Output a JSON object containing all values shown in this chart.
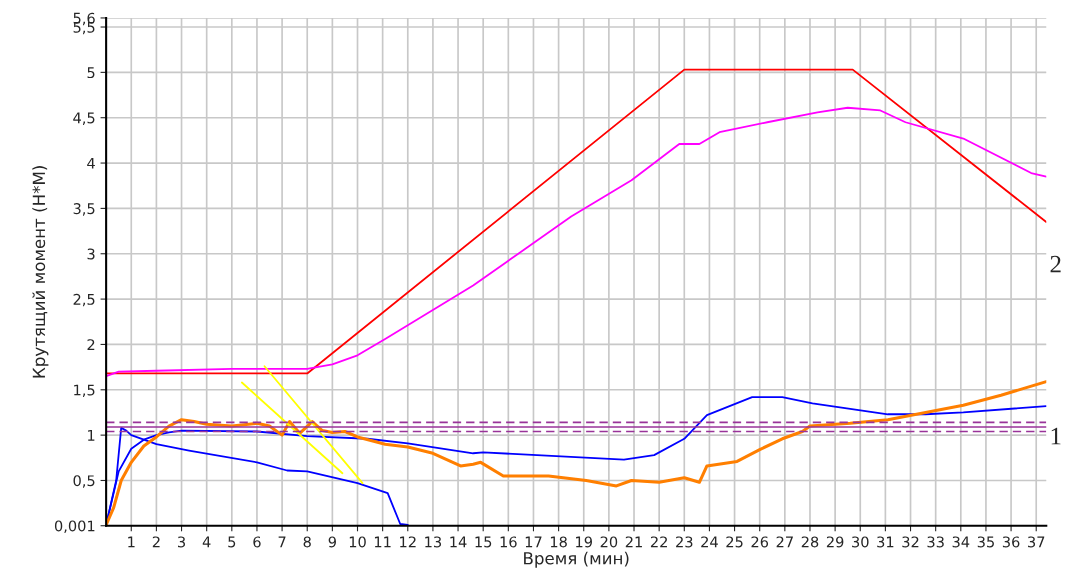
{
  "chart_data": {
    "type": "line",
    "xlabel": "Время (мин)",
    "ylabel": "Крутящий момент (Н*М)",
    "xlim": [
      0,
      37.4
    ],
    "xticks": [
      1,
      2,
      3,
      4,
      5,
      6,
      7,
      8,
      9,
      10,
      11,
      12,
      13,
      14,
      15,
      16,
      17,
      18,
      19,
      20,
      21,
      22,
      23,
      24,
      25,
      26,
      27,
      28,
      29,
      30,
      31,
      32,
      33,
      34,
      35,
      36,
      37
    ],
    "ylim": [
      0.001,
      5.6
    ],
    "yticks": [
      {
        "value": 0.001,
        "label": "0,001"
      },
      {
        "value": 0.5,
        "label": "0,5"
      },
      {
        "value": 1,
        "label": "1"
      },
      {
        "value": 1.5,
        "label": "1,5"
      },
      {
        "value": 2,
        "label": "2"
      },
      {
        "value": 2.5,
        "label": "2,5"
      },
      {
        "value": 3,
        "label": "3"
      },
      {
        "value": 3.5,
        "label": "3,5"
      },
      {
        "value": 4,
        "label": "4"
      },
      {
        "value": 4.5,
        "label": "4,5"
      },
      {
        "value": 5,
        "label": "5"
      },
      {
        "value": 5.5,
        "label": "5,5"
      },
      {
        "value": 5.6,
        "label": "5,6"
      }
    ],
    "grid": true,
    "legend": false,
    "series": [
      {
        "color": "#ff0000",
        "x": [
          0,
          8,
          23,
          29.7,
          37.4
        ],
        "values": [
          1.68,
          1.68,
          5.03,
          5.03,
          3.35
        ]
      },
      {
        "color": "#ff00ff",
        "x": [
          0,
          0.5,
          2,
          5,
          8,
          9,
          10,
          11.1,
          14.6,
          18.5,
          20.9,
          22.8,
          23.6,
          24.4,
          26.3,
          28.3,
          29.5,
          30.8,
          31.8,
          34.1,
          36.8,
          37.4
        ],
        "values": [
          1.65,
          1.7,
          1.71,
          1.73,
          1.73,
          1.78,
          1.88,
          2.06,
          2.65,
          3.41,
          3.81,
          4.21,
          4.21,
          4.34,
          4.45,
          4.56,
          4.61,
          4.58,
          4.45,
          4.27,
          3.89,
          3.85
        ]
      },
      {
        "color": "#0000ff",
        "x": [
          0,
          0.5,
          1,
          1.5,
          2,
          2.5,
          3,
          6,
          8,
          10.4,
          12,
          14.6,
          15,
          20.6,
          21.8,
          23,
          23.9,
          25.7,
          26.9,
          28.1,
          31.1,
          32.6,
          34.1,
          37.4
        ],
        "values": [
          0.01,
          0.6,
          0.85,
          0.95,
          1.0,
          1.03,
          1.05,
          1.04,
          0.99,
          0.96,
          0.91,
          0.8,
          0.81,
          0.73,
          0.78,
          0.96,
          1.22,
          1.42,
          1.42,
          1.35,
          1.23,
          1.23,
          1.25,
          1.32
        ]
      },
      {
        "color": "#0000ff",
        "x": [
          0,
          0.4,
          0.6,
          0.8,
          1,
          1.5,
          2,
          3.3,
          6,
          7.2,
          8,
          10,
          11.2,
          11.7,
          12
        ],
        "values": [
          0.01,
          0.5,
          1.08,
          1.05,
          1.0,
          0.95,
          0.9,
          0.83,
          0.7,
          0.61,
          0.6,
          0.47,
          0.36,
          0.02,
          0.01
        ]
      },
      {
        "color": "#ff7f00",
        "x": [
          0,
          0.3,
          0.6,
          1,
          1.5,
          2,
          2.5,
          3,
          3.5,
          4,
          5,
          6,
          6.5,
          7,
          7.3,
          7.7,
          8.2,
          8.6,
          9,
          9.5,
          10,
          11.1,
          12,
          13,
          14.1,
          14.6,
          14.9,
          15.8,
          17.6,
          19.1,
          20.3,
          20.9,
          22,
          23,
          23.6,
          23.9,
          25.1,
          26,
          26.9,
          27.7,
          28,
          29.6,
          31.1,
          32.6,
          34.1,
          35.6,
          37.4
        ],
        "values": [
          0.01,
          0.2,
          0.5,
          0.7,
          0.88,
          0.98,
          1.1,
          1.17,
          1.15,
          1.12,
          1.1,
          1.13,
          1.1,
          1.0,
          1.15,
          1.02,
          1.15,
          1.05,
          1.03,
          1.04,
          0.98,
          0.9,
          0.87,
          0.8,
          0.66,
          0.68,
          0.7,
          0.55,
          0.55,
          0.5,
          0.44,
          0.5,
          0.48,
          0.53,
          0.48,
          0.66,
          0.71,
          0.84,
          0.96,
          1.04,
          1.1,
          1.13,
          1.17,
          1.25,
          1.33,
          1.44,
          1.59
        ]
      },
      {
        "color": "#ffff00",
        "x": [
          5.4,
          9.4
        ],
        "values": [
          1.58,
          0.58
        ]
      },
      {
        "color": "#ffff00",
        "x": [
          6.3,
          10.2
        ],
        "values": [
          1.76,
          0.47
        ]
      }
    ],
    "ref_lines": [
      {
        "axis": "y",
        "value": 1.14,
        "color": "#993399",
        "line_style": "dashed"
      },
      {
        "axis": "y",
        "value": 1.09,
        "color": "#993399",
        "line_style": "solid"
      },
      {
        "axis": "y",
        "value": 1.04,
        "color": "#993399",
        "line_style": "dashed"
      }
    ],
    "annotations": [
      "1",
      "2"
    ]
  }
}
